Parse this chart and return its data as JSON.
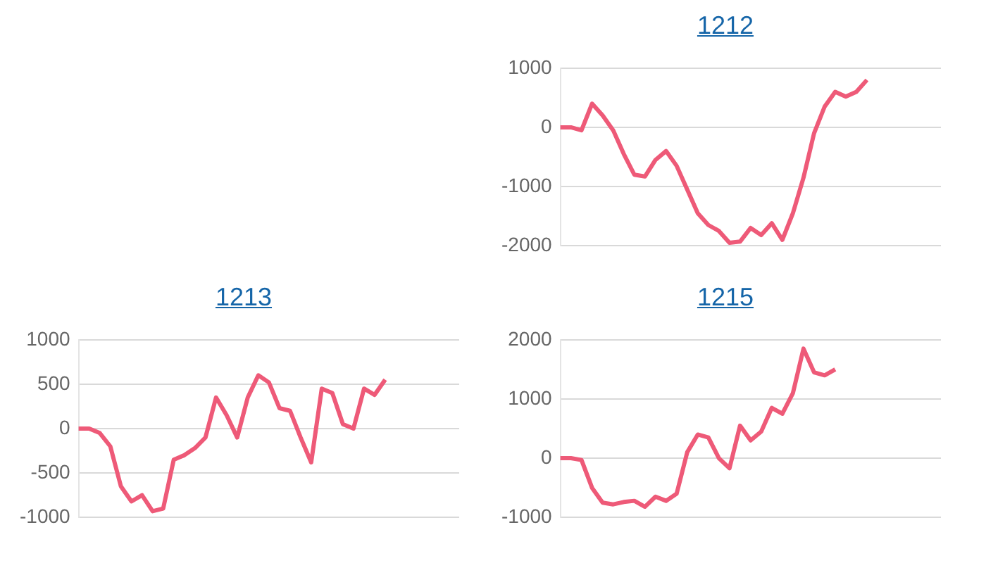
{
  "chart_data": [
    {
      "type": "line",
      "title": "1212",
      "categories": [
        null,
        null,
        null,
        null,
        null,
        null,
        null,
        null,
        null,
        null,
        null,
        null,
        null,
        null,
        null,
        null,
        null,
        null,
        null,
        null,
        null,
        null,
        null,
        null,
        null,
        null,
        null,
        null,
        null,
        null,
        null,
        null,
        null,
        null,
        null,
        null,
        null
      ],
      "series": [
        {
          "color": "#ee5a78",
          "values": [
            0,
            0,
            -50,
            400,
            200,
            -50,
            -450,
            -800,
            -830,
            -550,
            -400,
            -650,
            -1050,
            -1450,
            -1650,
            -1750,
            -1950,
            -1930,
            -1700,
            -1820,
            -1620,
            -1900,
            -1450,
            -850,
            -100,
            350,
            600,
            520,
            600,
            800,
            null,
            null,
            null,
            null,
            null,
            null,
            null
          ]
        }
      ],
      "ylim": [
        -2000,
        1000
      ],
      "yticks": [
        -2000,
        -1000,
        0,
        1000
      ],
      "grid": "y",
      "tick_labels": "y",
      "marker": "none",
      "line_style": "solid",
      "legend": false
    },
    {
      "type": "line",
      "title": "1213",
      "categories": [
        null,
        null,
        null,
        null,
        null,
        null,
        null,
        null,
        null,
        null,
        null,
        null,
        null,
        null,
        null,
        null,
        null,
        null,
        null,
        null,
        null,
        null,
        null,
        null,
        null,
        null,
        null,
        null,
        null,
        null,
        null,
        null,
        null,
        null,
        null,
        null,
        null
      ],
      "series": [
        {
          "color": "#ee5a78",
          "values": [
            0,
            0,
            -50,
            -200,
            -650,
            -820,
            -750,
            -930,
            -900,
            -350,
            -300,
            -220,
            -100,
            350,
            150,
            -100,
            350,
            600,
            520,
            230,
            200,
            -100,
            -380,
            450,
            400,
            50,
            0,
            450,
            380,
            550,
            null,
            null,
            null,
            null,
            null,
            null,
            null
          ]
        }
      ],
      "ylim": [
        -1000,
        1000
      ],
      "yticks": [
        -1000,
        -500,
        0,
        500,
        1000
      ],
      "grid": "y",
      "tick_labels": "y",
      "marker": "none",
      "line_style": "solid",
      "legend": false
    },
    {
      "type": "line",
      "title": "1215",
      "categories": [
        null,
        null,
        null,
        null,
        null,
        null,
        null,
        null,
        null,
        null,
        null,
        null,
        null,
        null,
        null,
        null,
        null,
        null,
        null,
        null,
        null,
        null,
        null,
        null,
        null,
        null,
        null,
        null,
        null,
        null,
        null,
        null,
        null,
        null,
        null,
        null,
        null
      ],
      "series": [
        {
          "color": "#ee5a78",
          "values": [
            0,
            0,
            -30,
            -500,
            -750,
            -780,
            -740,
            -720,
            -820,
            -650,
            -720,
            -600,
            100,
            400,
            350,
            0,
            -170,
            550,
            300,
            450,
            850,
            750,
            1100,
            1850,
            1450,
            1400,
            1500,
            null,
            null,
            null,
            null,
            null,
            null,
            null,
            null,
            null,
            null
          ]
        }
      ],
      "ylim": [
        -1000,
        2000
      ],
      "yticks": [
        -1000,
        0,
        1000,
        2000
      ],
      "grid": "y",
      "tick_labels": "y",
      "marker": "none",
      "line_style": "solid",
      "legend": false
    }
  ]
}
